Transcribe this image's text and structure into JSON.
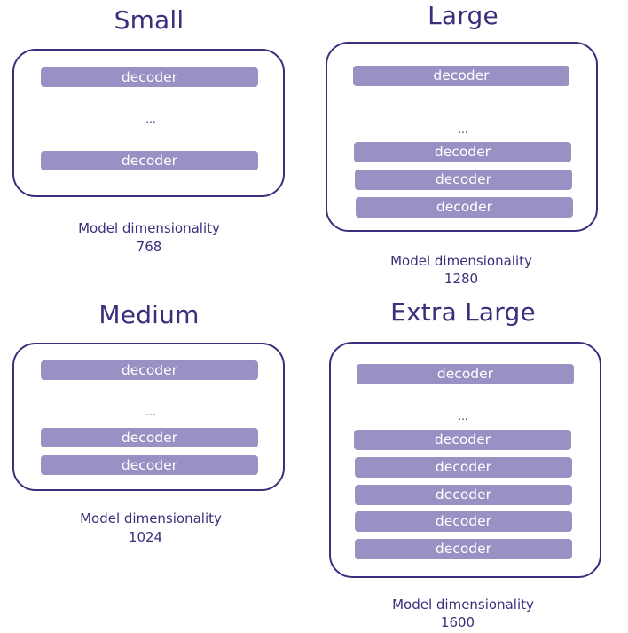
{
  "panels": [
    {
      "title": "Small",
      "decoder_label": "decoder",
      "ellipsis": "...",
      "caption_label": "Model dimensionality",
      "caption_value": "768"
    },
    {
      "title": "Large",
      "decoder_label": "decoder",
      "ellipsis": "...",
      "caption_label": "Model dimensionality",
      "caption_value": "1280"
    },
    {
      "title": "Medium",
      "decoder_label": "decoder",
      "ellipsis": "...",
      "caption_label": "Model dimensionality",
      "caption_value": "1024"
    },
    {
      "title": "Extra Large",
      "decoder_label": "decoder",
      "ellipsis": "...",
      "caption_label": "Model dimensionality",
      "caption_value": "1600"
    }
  ],
  "colors": {
    "outline": "#3d2e7c",
    "decoder_fill": "#9a90c4",
    "decoder_text": "#ffffff"
  }
}
